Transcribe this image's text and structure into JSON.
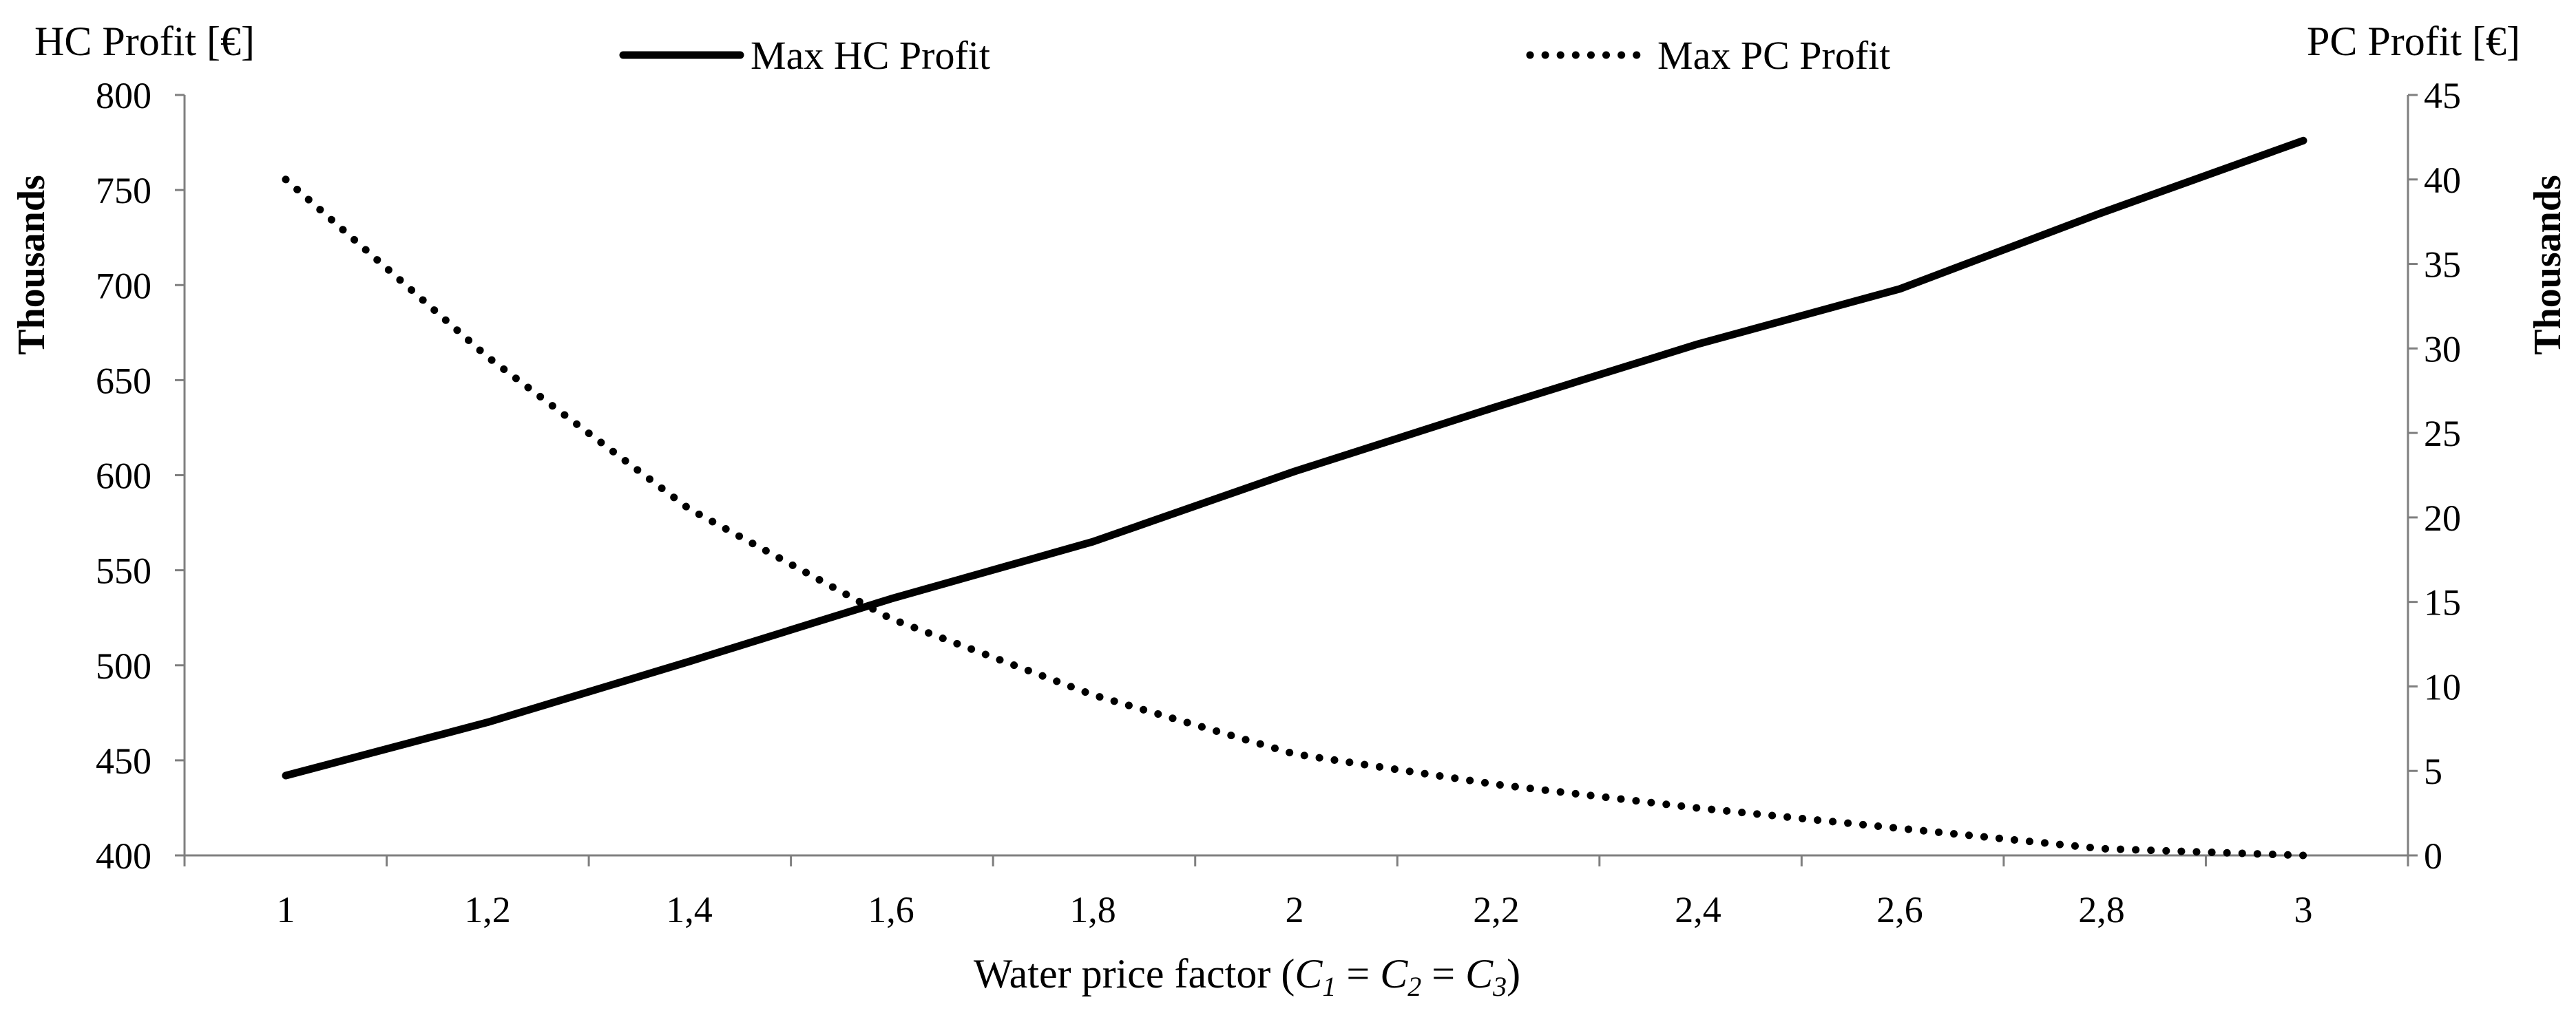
{
  "chart_data": {
    "type": "line",
    "categories": [
      "1",
      "1,2",
      "1,4",
      "1,6",
      "1,8",
      "2",
      "2,2",
      "2,4",
      "2,6",
      "2,8",
      "3"
    ],
    "x": [
      1,
      1.2,
      1.4,
      1.6,
      1.8,
      2,
      2.2,
      2.4,
      2.6,
      2.8,
      3
    ],
    "series": [
      {
        "name": "Max HC Profit",
        "axis": "left",
        "style": "solid",
        "values": [
          442,
          470,
          502,
          535,
          565,
          602,
          636,
          669,
          698,
          738,
          776
        ]
      },
      {
        "name": "Max PC Profit",
        "axis": "right",
        "style": "dotted",
        "values": [
          40,
          29.5,
          20.5,
          14,
          9.5,
          6,
          4.2,
          2.8,
          1.6,
          0.4,
          0
        ]
      }
    ],
    "xlabel_parts": {
      "main": "Water price factor (",
      "c": "C",
      "s1": "1",
      "s2": "2",
      "s3": "3",
      "eq": " = ",
      "close": ")"
    },
    "ylabel_left": "HC Profit [€]",
    "ylabel_right": "PC Profit [€]",
    "units_left": "Thousands",
    "units_right": "Thousands",
    "ylim_left": [
      400,
      800
    ],
    "yticks_left": [
      "400",
      "450",
      "500",
      "550",
      "600",
      "650",
      "700",
      "750",
      "800"
    ],
    "ylim_right": [
      0,
      45
    ],
    "yticks_right": [
      "0",
      "5",
      "10",
      "15",
      "20",
      "25",
      "30",
      "35",
      "40",
      "45"
    ],
    "legend_position": "top",
    "grid": false
  },
  "colors": {
    "line": "#000000",
    "axis": "#7f7f7f"
  }
}
